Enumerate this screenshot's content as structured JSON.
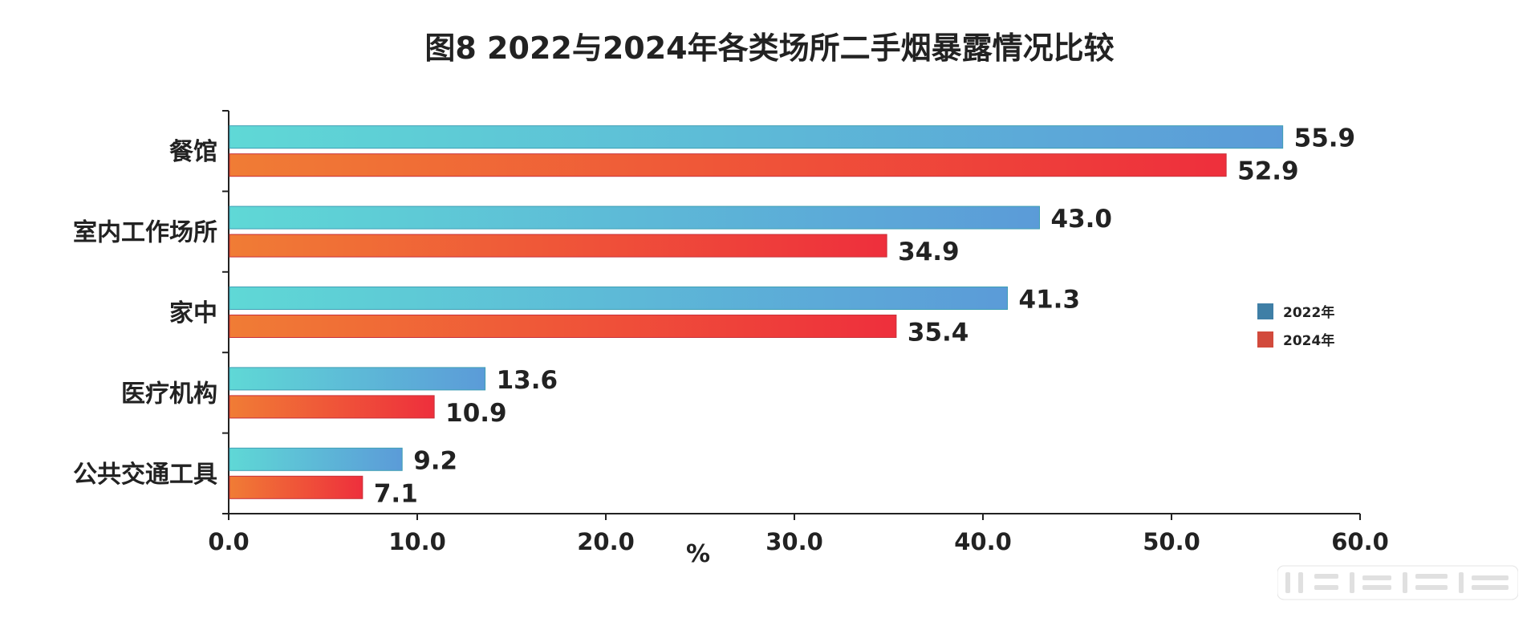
{
  "colors": {
    "series_2022_start": "#5fd8d6",
    "series_2022_end": "#5b9bd8",
    "series_2022_legend": "#3f7fa6",
    "series_2024_start": "#f07c35",
    "series_2024_end": "#ee2f3c",
    "series_2024_legend": "#d24a3c",
    "axis": "#222222"
  },
  "chart_data": {
    "type": "bar",
    "orientation": "horizontal",
    "title": "图8  2022与2024年各类场所二手烟暴露情况比较",
    "categories": [
      "餐馆",
      "室内工作场所",
      "家中",
      "医疗机构",
      "公共交通工具"
    ],
    "series": [
      {
        "name": "2022年",
        "values": [
          55.9,
          43.0,
          41.3,
          13.6,
          9.2
        ],
        "labels": [
          "55.9",
          "43.0",
          "41.3",
          "13.6",
          "9.2"
        ]
      },
      {
        "name": "2024年",
        "values": [
          52.9,
          34.9,
          35.4,
          10.9,
          7.1
        ],
        "labels": [
          "52.9",
          "34.9",
          "35.4",
          "10.9",
          "7.1"
        ]
      }
    ],
    "xlabel": "%",
    "ylabel": "",
    "xlim": [
      0,
      60
    ],
    "xticks": [
      "0.0",
      "10.0",
      "20.0",
      "30.0",
      "40.0",
      "50.0",
      "60.0"
    ],
    "grid": false,
    "legend_position": "right"
  }
}
